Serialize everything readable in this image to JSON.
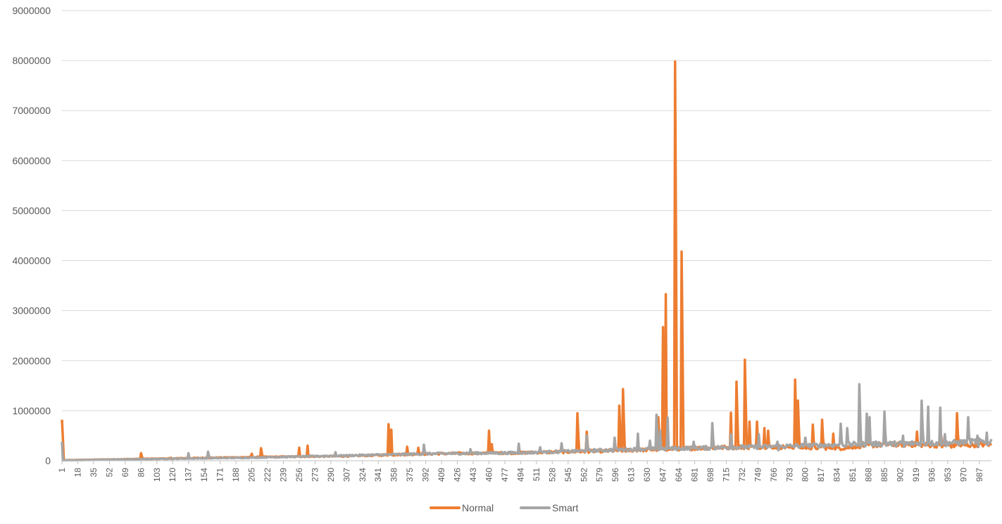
{
  "chart_data": {
    "type": "line",
    "title": "",
    "xlabel": "",
    "ylabel": "",
    "ylim": [
      0,
      9000000
    ],
    "yticks": [
      0,
      1000000,
      2000000,
      3000000,
      4000000,
      5000000,
      6000000,
      7000000,
      8000000,
      9000000
    ],
    "xlim": [
      1,
      1000
    ],
    "xticks": [
      1,
      18,
      35,
      52,
      69,
      86,
      103,
      120,
      137,
      154,
      171,
      188,
      205,
      222,
      239,
      256,
      273,
      290,
      307,
      324,
      341,
      358,
      375,
      392,
      409,
      426,
      443,
      460,
      477,
      494,
      511,
      528,
      545,
      562,
      579,
      596,
      613,
      630,
      647,
      664,
      681,
      698,
      715,
      732,
      749,
      766,
      783,
      800,
      817,
      834,
      851,
      868,
      885,
      902,
      919,
      936,
      953,
      970,
      987
    ],
    "grid": true,
    "legend": "bottom",
    "series": [
      {
        "name": "Normal",
        "color": "#ED7D31",
        "baseline": [
          [
            1,
            10000
          ],
          [
            100,
            40000
          ],
          [
            200,
            70000
          ],
          [
            300,
            90000
          ],
          [
            400,
            140000
          ],
          [
            500,
            160000
          ],
          [
            600,
            200000
          ],
          [
            650,
            230000
          ],
          [
            700,
            260000
          ],
          [
            760,
            280000
          ],
          [
            840,
            250000
          ],
          [
            860,
            300000
          ],
          [
            900,
            330000
          ],
          [
            960,
            300000
          ],
          [
            1000,
            330000
          ]
        ],
        "spikes": [
          [
            1,
            820000
          ],
          [
            86,
            150000
          ],
          [
            118,
            60000
          ],
          [
            137,
            55000
          ],
          [
            205,
            140000
          ],
          [
            215,
            250000
          ],
          [
            256,
            260000
          ],
          [
            265,
            300000
          ],
          [
            352,
            730000
          ],
          [
            355,
            620000
          ],
          [
            372,
            280000
          ],
          [
            384,
            260000
          ],
          [
            460,
            600000
          ],
          [
            463,
            330000
          ],
          [
            555,
            950000
          ],
          [
            565,
            580000
          ],
          [
            600,
            1100000
          ],
          [
            604,
            1430000
          ],
          [
            642,
            870000
          ],
          [
            647,
            2670000
          ],
          [
            650,
            3330000
          ],
          [
            660,
            7980000
          ],
          [
            667,
            4180000
          ],
          [
            720,
            960000
          ],
          [
            726,
            1580000
          ],
          [
            735,
            2020000
          ],
          [
            740,
            780000
          ],
          [
            748,
            780000
          ],
          [
            756,
            650000
          ],
          [
            760,
            600000
          ],
          [
            789,
            1620000
          ],
          [
            792,
            1200000
          ],
          [
            808,
            720000
          ],
          [
            818,
            820000
          ],
          [
            830,
            540000
          ],
          [
            920,
            580000
          ],
          [
            946,
            490000
          ],
          [
            963,
            950000
          ]
        ]
      },
      {
        "name": "Smart",
        "color": "#A5A5A5",
        "baseline": [
          [
            1,
            8000
          ],
          [
            100,
            35000
          ],
          [
            200,
            60000
          ],
          [
            300,
            100000
          ],
          [
            400,
            140000
          ],
          [
            500,
            160000
          ],
          [
            600,
            220000
          ],
          [
            650,
            240000
          ],
          [
            700,
            260000
          ],
          [
            760,
            280000
          ],
          [
            800,
            300000
          ],
          [
            860,
            330000
          ],
          [
            900,
            340000
          ],
          [
            960,
            360000
          ],
          [
            1000,
            400000
          ]
        ],
        "spikes": [
          [
            1,
            380000
          ],
          [
            137,
            150000
          ],
          [
            158,
            180000
          ],
          [
            295,
            170000
          ],
          [
            390,
            320000
          ],
          [
            440,
            230000
          ],
          [
            492,
            340000
          ],
          [
            515,
            270000
          ],
          [
            538,
            350000
          ],
          [
            565,
            500000
          ],
          [
            595,
            460000
          ],
          [
            620,
            540000
          ],
          [
            633,
            400000
          ],
          [
            640,
            920000
          ],
          [
            644,
            600000
          ],
          [
            652,
            860000
          ],
          [
            680,
            380000
          ],
          [
            700,
            750000
          ],
          [
            720,
            530000
          ],
          [
            750,
            530000
          ],
          [
            770,
            380000
          ],
          [
            800,
            460000
          ],
          [
            838,
            740000
          ],
          [
            845,
            650000
          ],
          [
            858,
            1530000
          ],
          [
            866,
            940000
          ],
          [
            869,
            870000
          ],
          [
            885,
            980000
          ],
          [
            905,
            500000
          ],
          [
            925,
            1200000
          ],
          [
            932,
            1080000
          ],
          [
            945,
            1060000
          ],
          [
            950,
            530000
          ],
          [
            975,
            870000
          ],
          [
            985,
            500000
          ],
          [
            995,
            560000
          ]
        ]
      }
    ]
  }
}
